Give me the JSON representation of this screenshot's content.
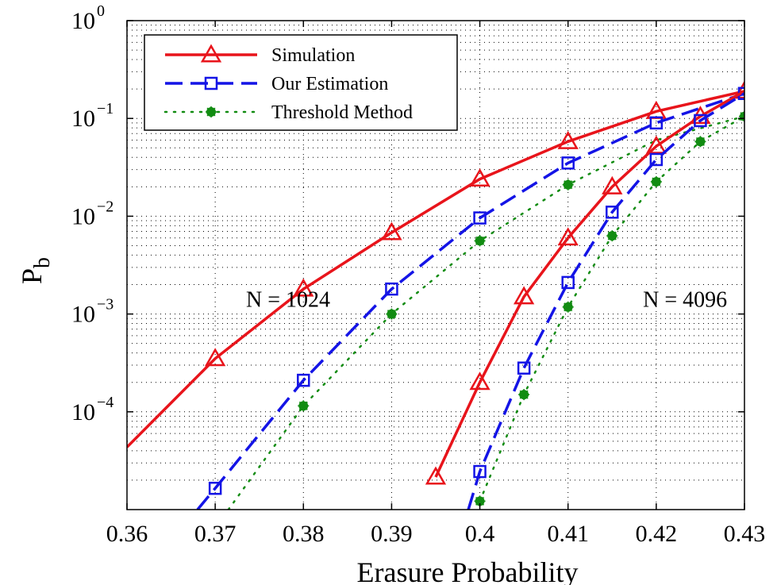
{
  "chart_data": {
    "type": "line",
    "xlabel": "Erasure Probability",
    "ylabel": "P",
    "ylabel_subscript": "b",
    "xlim": [
      0.36,
      0.43
    ],
    "ylim_exponent": [
      -5,
      0
    ],
    "yscale": "log",
    "grid": true,
    "legend_position": "top-left",
    "x_ticks": [
      "0.36",
      "0.37",
      "0.38",
      "0.39",
      "0.4",
      "0.41",
      "0.42",
      "0.43"
    ],
    "y_tick_base": "10",
    "y_ticks": [
      {
        "value": 1,
        "exp": "0"
      },
      {
        "value": 0.1,
        "exp": "−1"
      },
      {
        "value": 0.01,
        "exp": "−2"
      },
      {
        "value": 0.001,
        "exp": "−3"
      },
      {
        "value": 0.0001,
        "exp": "−4"
      }
    ],
    "annotations": [
      {
        "text": "N = 1024",
        "x": 0.3735,
        "y": 0.00098
      },
      {
        "text": "N = 4096",
        "x": 0.4185,
        "y": 0.00098
      }
    ],
    "series": [
      {
        "name": "Simulation",
        "color": "#e8141b",
        "dash": "solid",
        "marker": "triangle",
        "group": "N = 1024",
        "points": [
          [
            0.36,
            4.35e-05
          ],
          [
            0.37,
            0.00035
          ],
          [
            0.38,
            0.0018
          ],
          [
            0.39,
            0.0068
          ],
          [
            0.4,
            0.024
          ],
          [
            0.41,
            0.058
          ],
          [
            0.42,
            0.118
          ],
          [
            0.43,
            0.19
          ]
        ],
        "marker_points": [
          [
            0.37,
            0.00035
          ],
          [
            0.38,
            0.0018
          ],
          [
            0.39,
            0.0068
          ],
          [
            0.4,
            0.024
          ],
          [
            0.41,
            0.058
          ],
          [
            0.42,
            0.118
          ],
          [
            0.43,
            0.19
          ]
        ]
      },
      {
        "name": "Our Estimation",
        "color": "#1414e6",
        "dash": "long-dash",
        "marker": "square",
        "group": "N = 1024",
        "points": [
          [
            0.368,
            1e-05
          ],
          [
            0.37,
            1.65e-05
          ],
          [
            0.38,
            0.00021
          ],
          [
            0.39,
            0.0018
          ],
          [
            0.4,
            0.0096
          ],
          [
            0.41,
            0.035
          ],
          [
            0.42,
            0.09
          ],
          [
            0.43,
            0.18
          ]
        ],
        "marker_points": [
          [
            0.37,
            1.65e-05
          ],
          [
            0.38,
            0.00021
          ],
          [
            0.39,
            0.0018
          ],
          [
            0.4,
            0.0096
          ],
          [
            0.41,
            0.035
          ],
          [
            0.42,
            0.09
          ],
          [
            0.43,
            0.18
          ]
        ]
      },
      {
        "name": "Threshold Method",
        "color": "#128c12",
        "dash": "dotted",
        "marker": "asterisk",
        "group": "N = 1024",
        "points": [
          [
            0.3715,
            1e-05
          ],
          [
            0.38,
            0.000115
          ],
          [
            0.39,
            0.001
          ],
          [
            0.4,
            0.0056
          ],
          [
            0.41,
            0.021
          ],
          [
            0.42,
            0.06
          ],
          [
            0.43,
            0.105
          ]
        ],
        "marker_points": [
          [
            0.38,
            0.000115
          ],
          [
            0.39,
            0.001
          ],
          [
            0.4,
            0.0056
          ],
          [
            0.41,
            0.021
          ],
          [
            0.43,
            0.105
          ]
        ]
      },
      {
        "name": "Simulation",
        "color": "#e8141b",
        "dash": "solid",
        "marker": "triangle",
        "group": "N = 4096",
        "points": [
          [
            0.395,
            2.15e-05
          ],
          [
            0.4,
            0.0002
          ],
          [
            0.405,
            0.0015
          ],
          [
            0.41,
            0.006
          ],
          [
            0.415,
            0.02
          ],
          [
            0.42,
            0.052
          ],
          [
            0.425,
            0.105
          ],
          [
            0.43,
            0.19
          ]
        ],
        "marker_points": [
          [
            0.395,
            2.15e-05
          ],
          [
            0.4,
            0.0002
          ],
          [
            0.405,
            0.0015
          ],
          [
            0.41,
            0.006
          ],
          [
            0.415,
            0.02
          ],
          [
            0.42,
            0.052
          ],
          [
            0.425,
            0.105
          ]
        ]
      },
      {
        "name": "Our Estimation",
        "color": "#1414e6",
        "dash": "long-dash",
        "marker": "square",
        "group": "N = 4096",
        "points": [
          [
            0.3987,
            1e-05
          ],
          [
            0.4,
            2.45e-05
          ],
          [
            0.405,
            0.00028
          ],
          [
            0.41,
            0.0021
          ],
          [
            0.415,
            0.011
          ],
          [
            0.42,
            0.038
          ],
          [
            0.425,
            0.095
          ],
          [
            0.43,
            0.18
          ]
        ],
        "marker_points": [
          [
            0.4,
            2.45e-05
          ],
          [
            0.405,
            0.00028
          ],
          [
            0.41,
            0.0021
          ],
          [
            0.415,
            0.011
          ],
          [
            0.42,
            0.038
          ],
          [
            0.425,
            0.095
          ]
        ]
      },
      {
        "name": "Threshold Method",
        "color": "#128c12",
        "dash": "dotted",
        "marker": "asterisk",
        "group": "N = 4096",
        "points": [
          [
            0.4,
            1.22e-05
          ],
          [
            0.405,
            0.00015
          ],
          [
            0.41,
            0.00118
          ],
          [
            0.415,
            0.0063
          ],
          [
            0.42,
            0.0225
          ],
          [
            0.425,
            0.058
          ],
          [
            0.43,
            0.105
          ]
        ],
        "marker_points": [
          [
            0.4,
            1.22e-05
          ],
          [
            0.405,
            0.00015
          ],
          [
            0.41,
            0.00118
          ],
          [
            0.415,
            0.0063
          ],
          [
            0.42,
            0.0225
          ],
          [
            0.425,
            0.058
          ]
        ]
      }
    ],
    "legend": [
      {
        "label": "Simulation",
        "color": "#e8141b",
        "dash": "solid",
        "marker": "triangle"
      },
      {
        "label": "Our Estimation",
        "color": "#1414e6",
        "dash": "long-dash",
        "marker": "square"
      },
      {
        "label": "Threshold Method",
        "color": "#128c12",
        "dash": "dotted",
        "marker": "asterisk"
      }
    ]
  }
}
